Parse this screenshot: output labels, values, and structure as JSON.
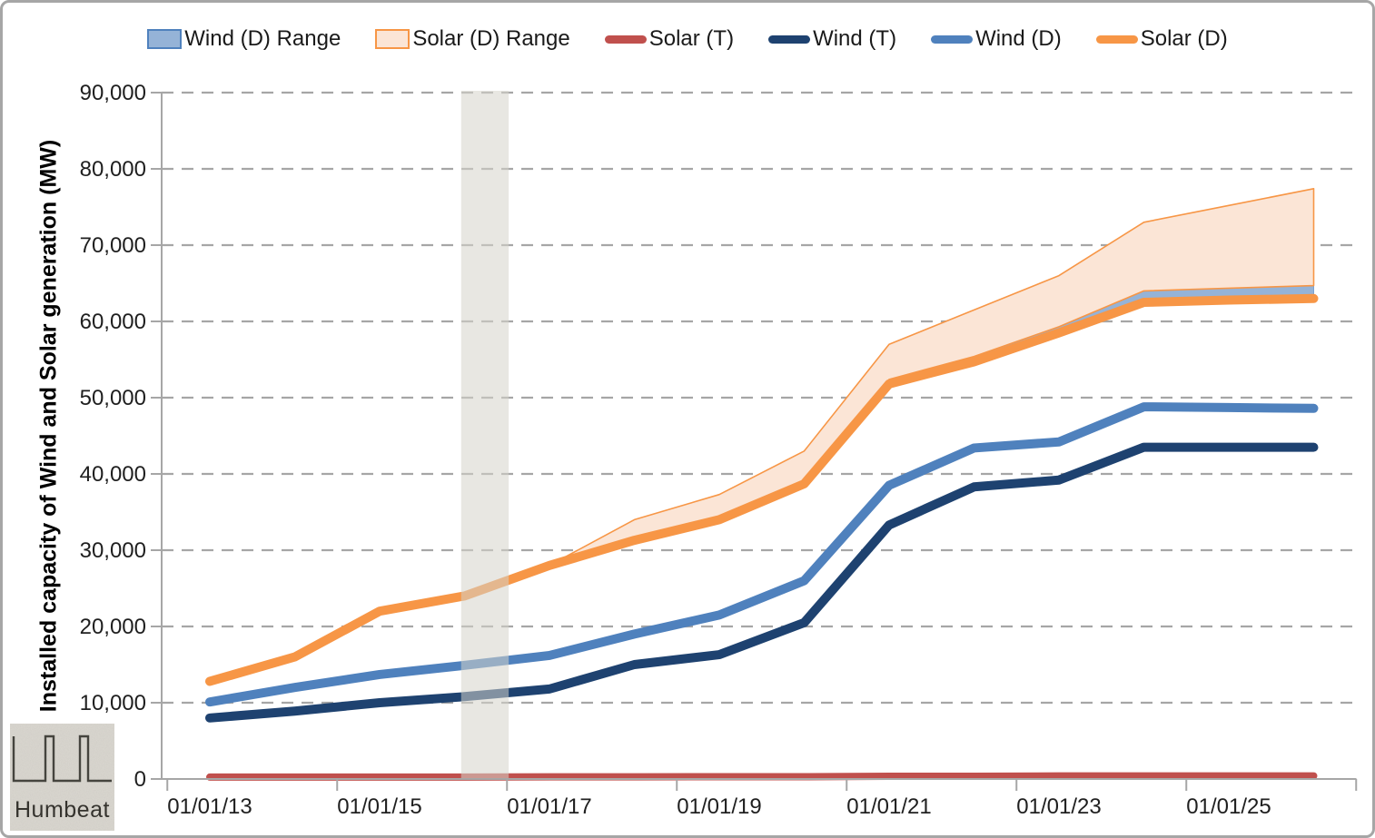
{
  "legend": {
    "items": [
      {
        "label": "Wind (D) Range",
        "swatch": "box",
        "fill": "#95b3d7",
        "stroke": "#4f81bd"
      },
      {
        "label": "Solar (D) Range",
        "swatch": "box",
        "fill": "#fbe5d6",
        "stroke": "#f79646"
      },
      {
        "label": "Solar (T)",
        "swatch": "line",
        "color": "#c0504d"
      },
      {
        "label": "Wind (T)",
        "swatch": "line",
        "color": "#1e4270"
      },
      {
        "label": "Wind (D)",
        "swatch": "line",
        "color": "#4f81bd"
      },
      {
        "label": "Solar (D)",
        "swatch": "line",
        "color": "#f79646"
      }
    ]
  },
  "axes": {
    "y_title": "Installed capacity of Wind and Solar generation (MW)",
    "y_tick_labels": [
      "0",
      "10,000",
      "20,000",
      "30,000",
      "40,000",
      "50,000",
      "60,000",
      "70,000",
      "80,000",
      "90,000"
    ],
    "x_tick_labels": [
      "01/01/13",
      "01/01/15",
      "01/01/17",
      "01/01/19",
      "01/01/21",
      "01/01/23",
      "01/01/25"
    ],
    "axis_color": "#a6a6a6",
    "gridline_color": "#a6a6a6",
    "label_color": "#1f1f1f"
  },
  "chart_data": {
    "type": "line",
    "title": "",
    "xlabel": "",
    "ylabel": "Installed capacity of Wind and Solar generation (MW)",
    "ylim": [
      0,
      90000
    ],
    "y_tick_step": 10000,
    "grid": "horizontal-dashed",
    "legend_position": "top",
    "x_years": [
      2013,
      2014,
      2015,
      2016,
      2017,
      2018,
      2019,
      2020,
      2021,
      2022,
      2023,
      2024,
      2025,
      2026
    ],
    "series": [
      {
        "name": "Solar (T)",
        "color": "#c0504d",
        "width": 8,
        "values": [
          250,
          250,
          250,
          250,
          280,
          280,
          300,
          300,
          350,
          350,
          400,
          400,
          400,
          400
        ]
      },
      {
        "name": "Wind (T)",
        "color": "#1e4270",
        "width": 10,
        "values": [
          8000,
          8900,
          10000,
          10800,
          11800,
          15000,
          16300,
          20500,
          33300,
          38300,
          39200,
          43500,
          43500,
          43500
        ]
      },
      {
        "name": "Wind (D)",
        "color": "#4f81bd",
        "width": 10,
        "values": [
          10100,
          12000,
          13700,
          14900,
          16200,
          19000,
          21500,
          26000,
          38500,
          43400,
          44200,
          48800,
          48700,
          48600
        ]
      },
      {
        "name": "Solar (D)",
        "color": "#f79646",
        "width": 10,
        "values": [
          12800,
          16000,
          22000,
          24000,
          28000,
          31300,
          34000,
          38700,
          51800,
          54700,
          58500,
          62500,
          62800,
          63000
        ]
      }
    ],
    "ranges": [
      {
        "name": "Solar (D) Range",
        "fill": "#fbe5d6",
        "stroke": "#f79646",
        "stroke_width": 1.6,
        "years": [
          2017,
          2018,
          2019,
          2020,
          2021,
          2022,
          2023,
          2024,
          2025,
          2026
        ],
        "upper": [
          28000,
          34000,
          37300,
          43000,
          57000,
          61500,
          66000,
          73000,
          75200,
          77400
        ],
        "lower": [
          28000,
          31300,
          34000,
          39100,
          52400,
          55400,
          59300,
          64000,
          64350,
          64700
        ]
      },
      {
        "name": "Wind (D) Range",
        "fill": "#95b3d7",
        "stroke": "#7ba2cf",
        "stroke_width": 1,
        "years": [
          2019,
          2020,
          2021,
          2022,
          2023,
          2024,
          2025,
          2026
        ],
        "upper": [
          34000,
          39100,
          52400,
          55400,
          59300,
          64000,
          64350,
          64700
        ],
        "lower": [
          34000,
          38700,
          51800,
          54700,
          58500,
          62500,
          62800,
          63000
        ]
      }
    ],
    "highlight_band": {
      "start_year": 2015.96,
      "end_year": 2016.52,
      "color": "rgba(214,211,202,0.55)"
    }
  },
  "logo": {
    "text": "Humbeat"
  }
}
